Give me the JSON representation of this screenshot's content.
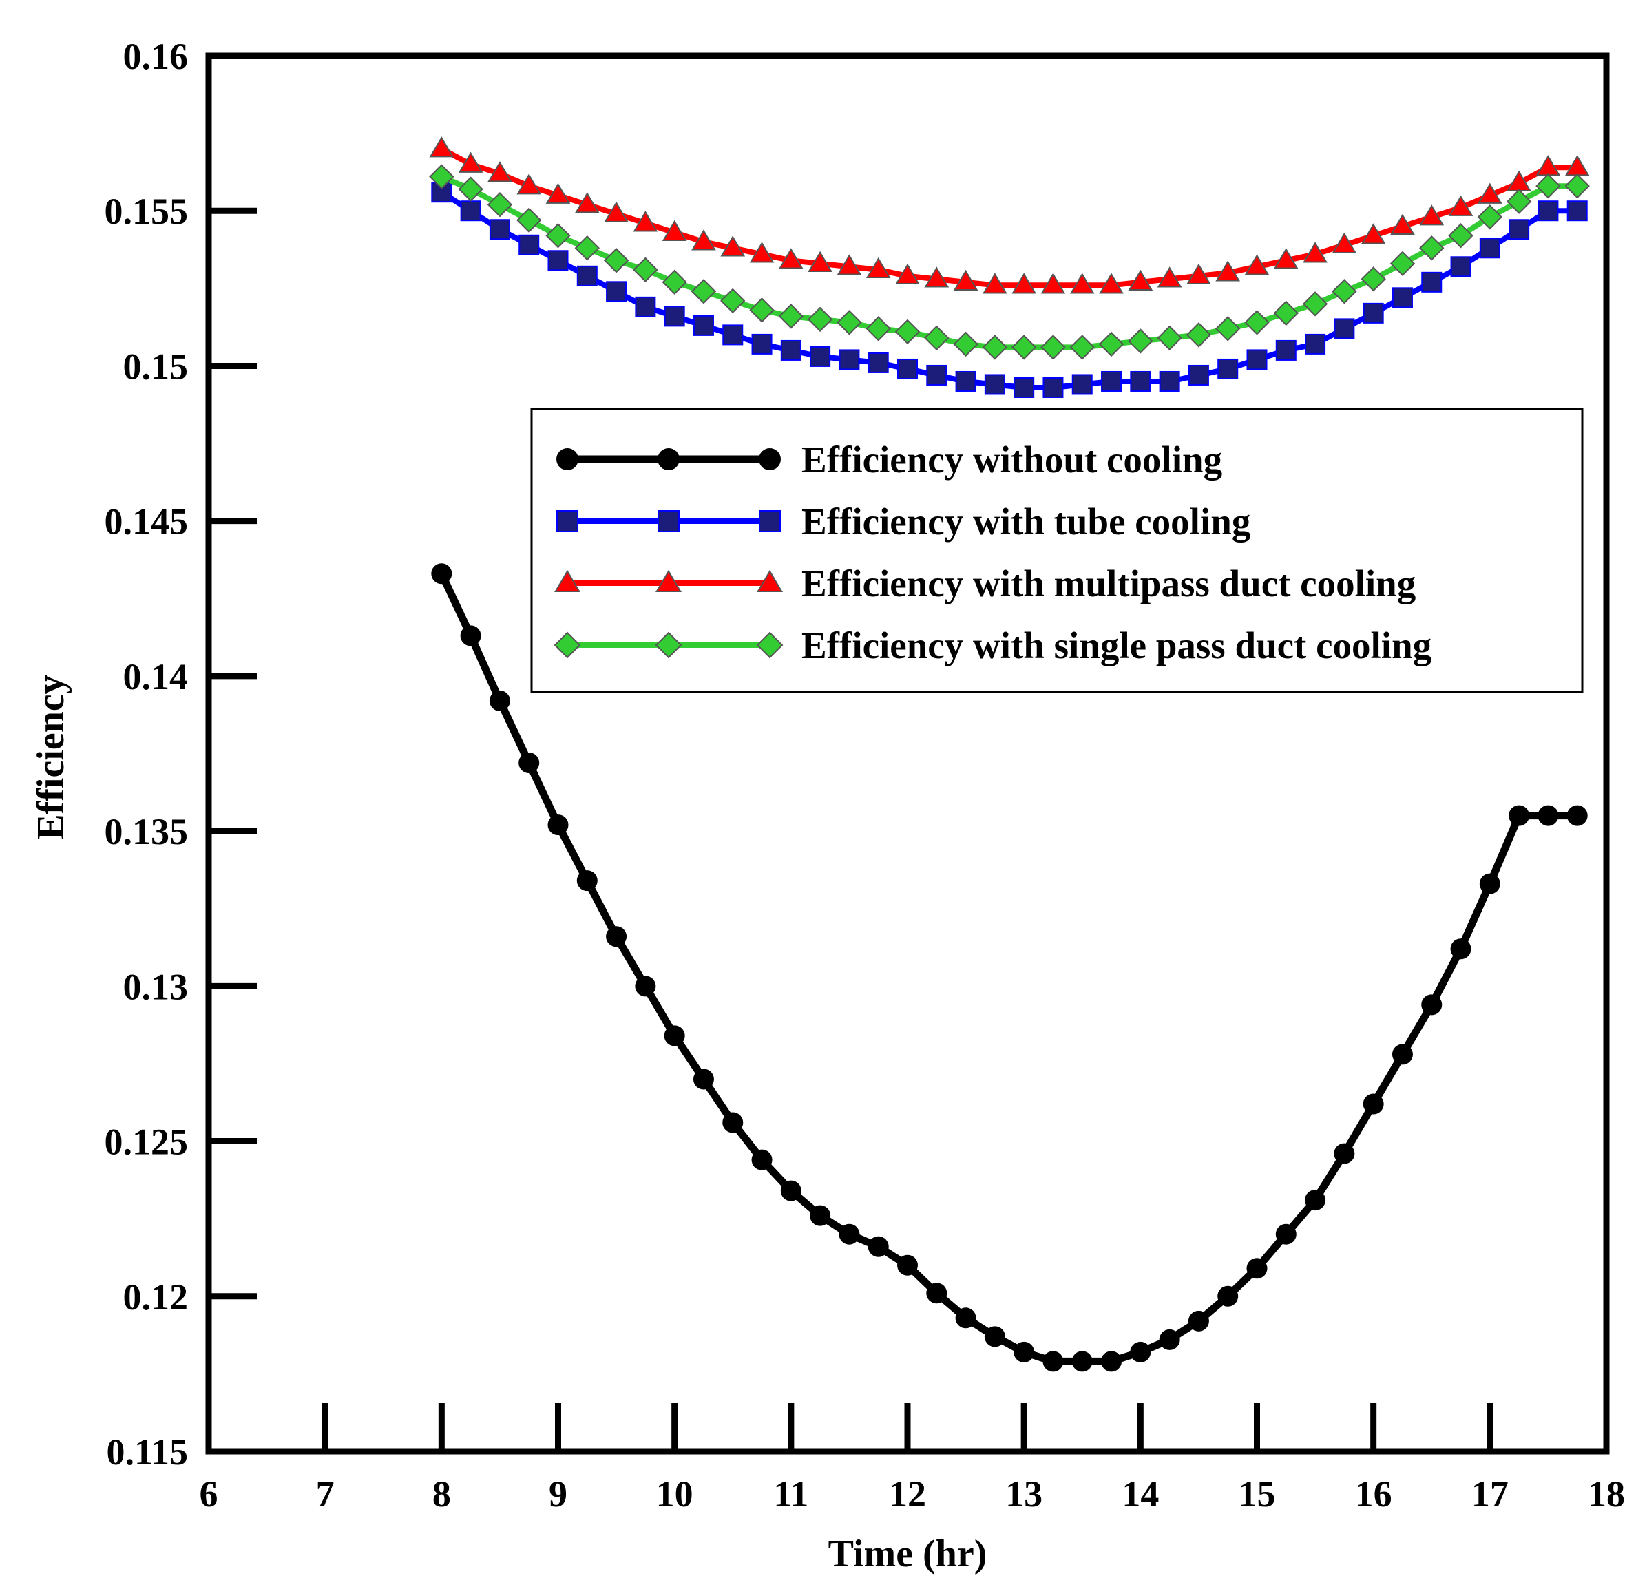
{
  "chart_data": {
    "type": "line",
    "title": "",
    "xlabel": "Time (hr)",
    "ylabel": "Efficiency",
    "xlim": [
      6,
      18
    ],
    "ylim": [
      0.115,
      0.16
    ],
    "xticks": [
      "6",
      "7",
      "8",
      "9",
      "10",
      "11",
      "12",
      "13",
      "14",
      "15",
      "16",
      "17",
      "18"
    ],
    "yticks": [
      "0.115",
      "0.12",
      "0.125",
      "0.13",
      "0.135",
      "0.14",
      "0.145",
      "0.15",
      "0.155",
      "0.16"
    ],
    "grid": false,
    "legend_position": "upper-right",
    "x": [
      8,
      8.25,
      8.5,
      8.75,
      9,
      9.25,
      9.5,
      9.75,
      10,
      10.25,
      10.5,
      10.75,
      11,
      11.25,
      11.5,
      11.75,
      12,
      12.25,
      12.5,
      12.75,
      13,
      13.25,
      13.5,
      13.75,
      14,
      14.25,
      14.5,
      14.75,
      15,
      15.25,
      15.5,
      15.75,
      16,
      16.25,
      16.5,
      16.75,
      17,
      17.25,
      17.5,
      17.75
    ],
    "series": [
      {
        "name": "Efficiency without cooling",
        "color": "#000000",
        "line_color": "#000000",
        "marker_fill": "#000000",
        "marker": "circle",
        "values": [
          0.1433,
          0.1413,
          0.1392,
          0.1372,
          0.1352,
          0.1334,
          0.1316,
          0.13,
          0.1284,
          0.127,
          0.1256,
          0.1244,
          0.1234,
          0.1226,
          0.122,
          0.1216,
          0.121,
          0.1201,
          0.1193,
          0.1187,
          0.1182,
          0.1179,
          0.1179,
          0.1179,
          0.1182,
          0.1186,
          0.1192,
          0.12,
          0.1209,
          0.122,
          0.1231,
          0.1246,
          0.1262,
          0.1278,
          0.1294,
          0.1312,
          0.1333,
          0.1355,
          0.1355,
          0.1355
        ]
      },
      {
        "name": "Efficiency with tube cooling",
        "color": "#0000ff",
        "line_color": "#0000ff",
        "marker_fill": "#1c1c7a",
        "marker": "square",
        "values": [
          0.1556,
          0.155,
          0.1544,
          0.1539,
          0.1534,
          0.1529,
          0.1524,
          0.1519,
          0.1516,
          0.1513,
          0.151,
          0.1507,
          0.1505,
          0.1503,
          0.1502,
          0.1501,
          0.1499,
          0.1497,
          0.1495,
          0.1494,
          0.1493,
          0.1493,
          0.1494,
          0.1495,
          0.1495,
          0.1495,
          0.1497,
          0.1499,
          0.1502,
          0.1505,
          0.1507,
          0.1512,
          0.1517,
          0.1522,
          0.1527,
          0.1532,
          0.1538,
          0.1544,
          0.155,
          0.155
        ]
      },
      {
        "name": "Efficiency with multipass duct cooling",
        "color": "#ff0000",
        "line_color": "#ff0000",
        "marker_fill": "#ff0000",
        "marker": "triangle",
        "values": [
          0.157,
          0.1565,
          0.1562,
          0.1558,
          0.1555,
          0.1552,
          0.1549,
          0.1546,
          0.1543,
          0.154,
          0.1538,
          0.1536,
          0.1534,
          0.1533,
          0.1532,
          0.1531,
          0.1529,
          0.1528,
          0.1527,
          0.1526,
          0.1526,
          0.1526,
          0.1526,
          0.1526,
          0.1527,
          0.1528,
          0.1529,
          0.153,
          0.1532,
          0.1534,
          0.1536,
          0.1539,
          0.1542,
          0.1545,
          0.1548,
          0.1551,
          0.1555,
          0.1559,
          0.1564,
          0.1564
        ]
      },
      {
        "name": "Efficiency with single pass duct cooling",
        "color": "#33cc33",
        "line_color": "#33cc33",
        "marker_fill": "#33cc33",
        "marker": "diamond",
        "values": [
          0.1561,
          0.1557,
          0.1552,
          0.1547,
          0.1542,
          0.1538,
          0.1534,
          0.1531,
          0.1527,
          0.1524,
          0.1521,
          0.1518,
          0.1516,
          0.1515,
          0.1514,
          0.1512,
          0.1511,
          0.1509,
          0.1507,
          0.1506,
          0.1506,
          0.1506,
          0.1506,
          0.1507,
          0.1508,
          0.1509,
          0.151,
          0.1512,
          0.1514,
          0.1517,
          0.152,
          0.1524,
          0.1528,
          0.1533,
          0.1538,
          0.1542,
          0.1548,
          0.1553,
          0.1558,
          0.1558
        ]
      }
    ]
  }
}
